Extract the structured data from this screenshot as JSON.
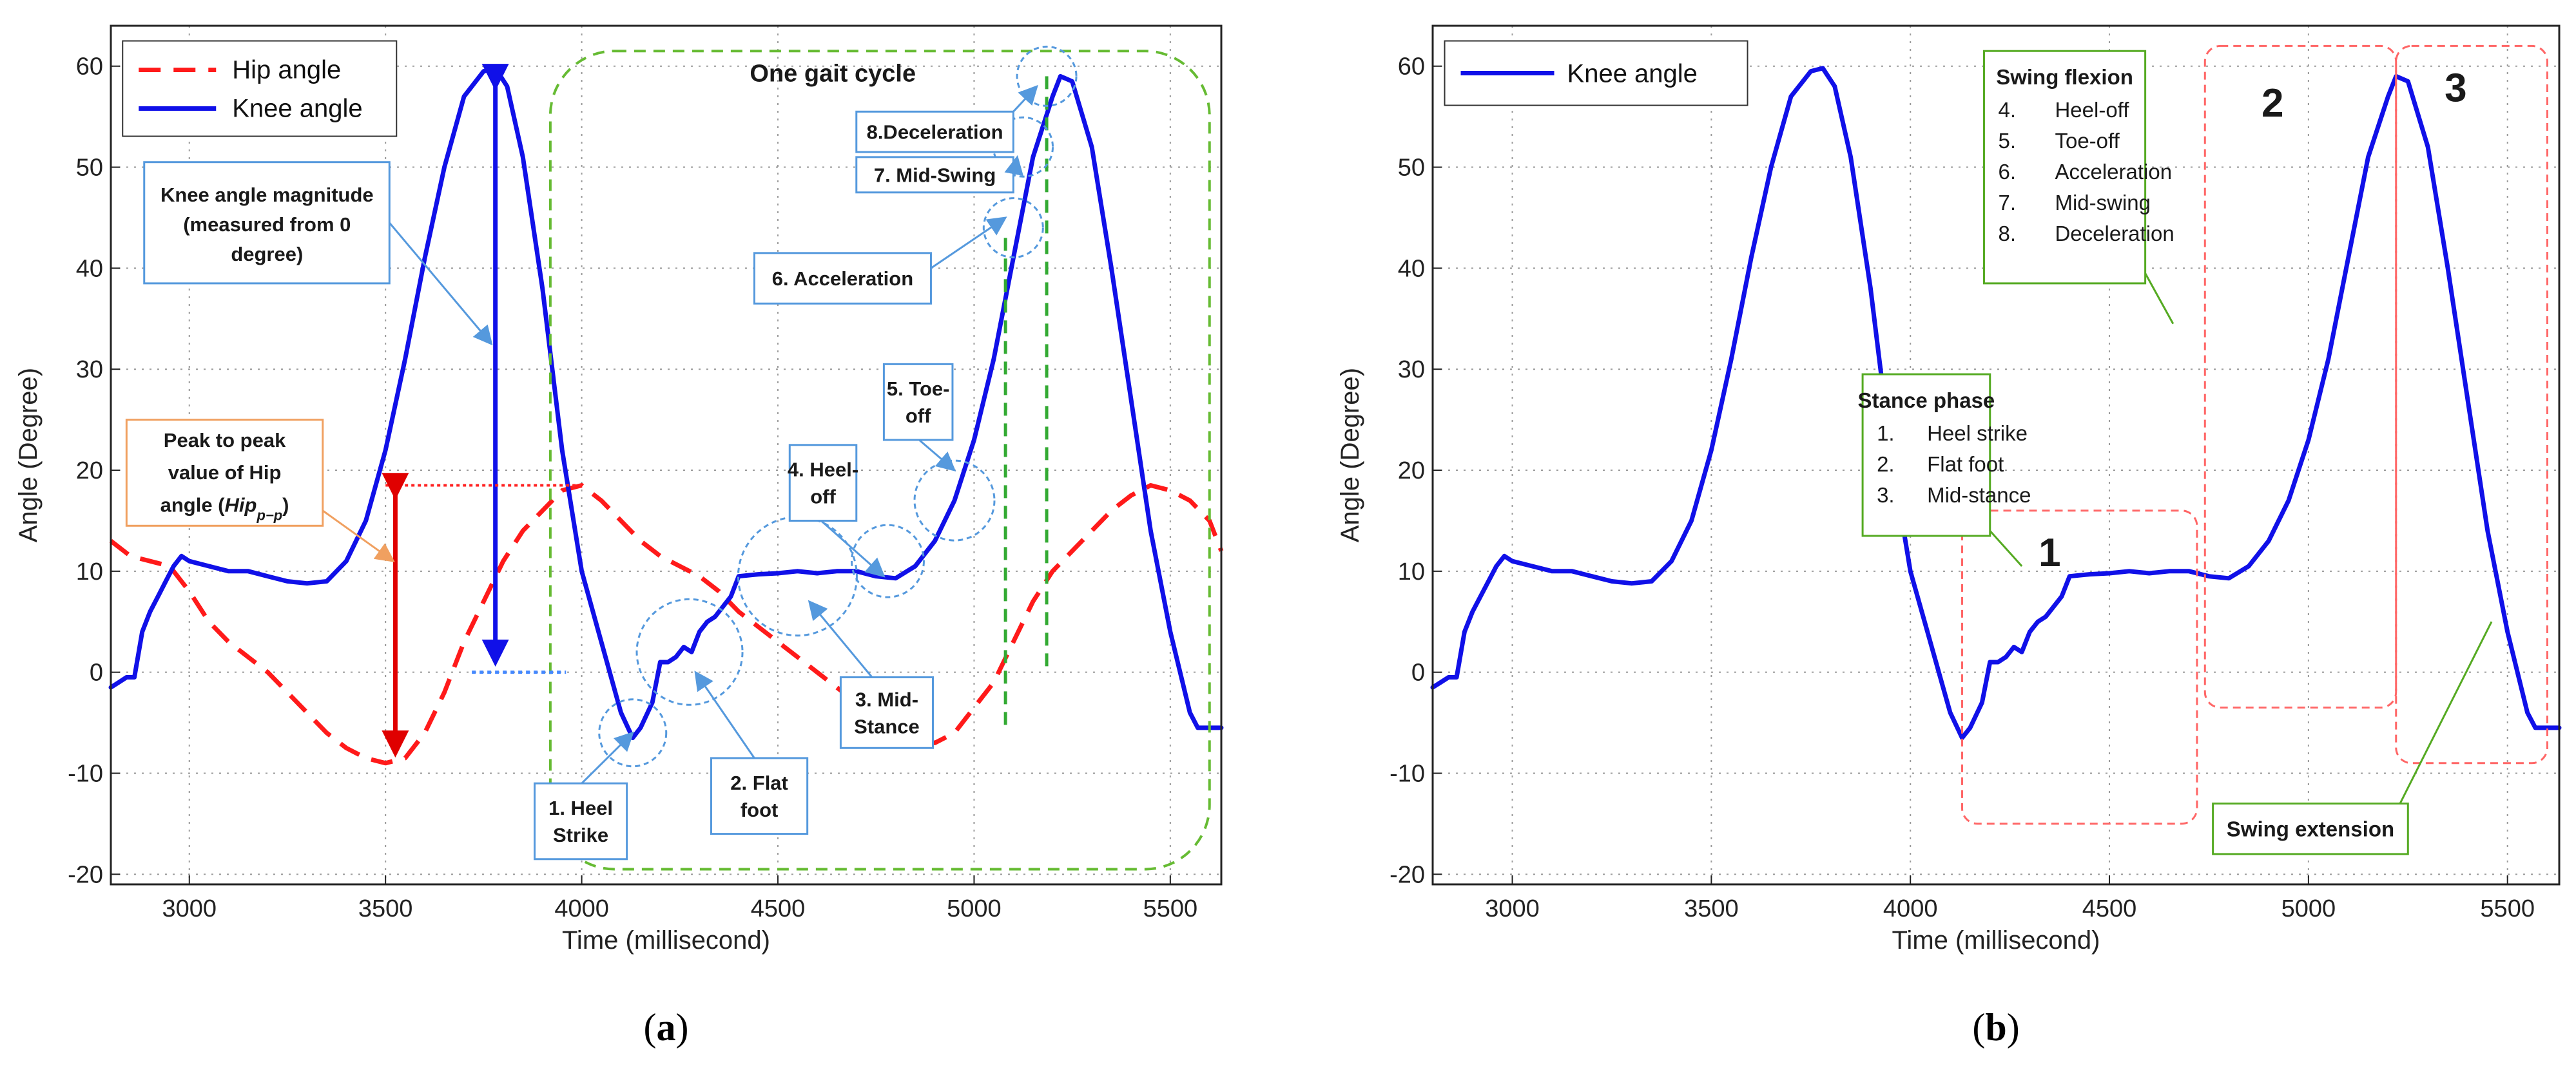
{
  "colors": {
    "hip": "#ff1a1a",
    "knee": "#1010e8",
    "gait_green": "#66bb33",
    "phase_red": "#ff6666",
    "phase_number": "#ee2222",
    "callout_blue": "#5599dd",
    "callout_orange": "#f0a060",
    "ann_green": "#55aa22",
    "grid": "#9a9a9a"
  },
  "chart_data": [
    {
      "id": "a",
      "type": "line",
      "caption": "a",
      "xlabel": "Time (millisecond)",
      "ylabel": "Angle (Degree)",
      "xlim": [
        2800,
        5630
      ],
      "ylim": [
        -21,
        64
      ],
      "xticks": [
        3000,
        3500,
        4000,
        4500,
        5000,
        5500
      ],
      "yticks": [
        -20,
        -10,
        0,
        10,
        20,
        30,
        40,
        50,
        60
      ],
      "grid": true,
      "legend": {
        "position": "top-left",
        "entries": [
          "Hip angle",
          "Knee angle"
        ]
      },
      "series": [
        {
          "name": "Knee angle",
          "color": "knee",
          "style": "solid",
          "x": [
            2800,
            2820,
            2840,
            2860,
            2880,
            2900,
            2920,
            2940,
            2960,
            2980,
            3000,
            3050,
            3100,
            3150,
            3200,
            3250,
            3300,
            3350,
            3400,
            3450,
            3500,
            3550,
            3600,
            3650,
            3700,
            3750,
            3780,
            3810,
            3850,
            3900,
            3950,
            4000,
            4050,
            4100,
            4130,
            4150,
            4180,
            4200,
            4220,
            4240,
            4260,
            4280,
            4300,
            4320,
            4340,
            4380,
            4400,
            4450,
            4500,
            4550,
            4600,
            4650,
            4700,
            4750,
            4800,
            4850,
            4900,
            4950,
            5000,
            5050,
            5100,
            5150,
            5200,
            5220,
            5250,
            5300,
            5350,
            5400,
            5450,
            5500,
            5550,
            5570,
            5590,
            5610,
            5630
          ],
          "y": [
            -1.5,
            -1,
            -0.5,
            -0.5,
            4,
            6,
            7.5,
            9,
            10.5,
            11.5,
            11,
            10.5,
            10,
            10,
            9.5,
            9,
            8.8,
            9,
            11,
            15,
            22,
            31,
            41,
            50,
            57,
            59.5,
            59.8,
            58,
            51,
            38,
            22,
            10,
            3,
            -4,
            -6.5,
            -5.5,
            -3,
            1,
            1,
            1.5,
            2.5,
            2,
            4,
            5,
            5.5,
            7.5,
            9.5,
            9.7,
            9.8,
            10,
            9.8,
            10,
            10,
            9.5,
            9.3,
            10.5,
            13,
            17,
            23,
            31,
            41,
            51,
            57,
            59,
            58.5,
            52,
            40,
            27,
            14,
            4,
            -4,
            -5.5,
            -5.5,
            -5.5,
            -5.5
          ]
        },
        {
          "name": "Hip angle",
          "color": "hip",
          "style": "dashed",
          "x": [
            2800,
            2850,
            2900,
            2950,
            3000,
            3050,
            3100,
            3150,
            3200,
            3250,
            3300,
            3350,
            3400,
            3450,
            3500,
            3550,
            3600,
            3650,
            3700,
            3750,
            3800,
            3850,
            3900,
            3950,
            4000,
            4050,
            4100,
            4150,
            4200,
            4250,
            4300,
            4350,
            4400,
            4450,
            4500,
            4550,
            4600,
            4650,
            4700,
            4750,
            4800,
            4850,
            4900,
            4950,
            5000,
            5050,
            5100,
            5150,
            5200,
            5250,
            5300,
            5350,
            5400,
            5450,
            5500,
            5550,
            5600,
            5630
          ],
          "y": [
            13,
            11.5,
            11,
            10.5,
            8,
            5,
            3,
            1.5,
            0,
            -2,
            -4,
            -6,
            -7.5,
            -8.5,
            -9,
            -8.5,
            -6,
            -2,
            3,
            7,
            11,
            14,
            16,
            18,
            18.5,
            17,
            15,
            13,
            11.5,
            10.5,
            9.5,
            8,
            6,
            4.5,
            3,
            1.5,
            0,
            -1.5,
            -3,
            -4.5,
            -5.5,
            -6.5,
            -7,
            -6,
            -3.5,
            -1,
            3,
            7,
            10,
            12,
            14,
            16,
            17.5,
            18.5,
            18,
            17,
            15,
            12
          ]
        }
      ],
      "annotations": {
        "gait_cycle_label": "One gait cycle",
        "knee_magnitude_lines": [
          "Knee angle magnitude",
          "(measured from 0",
          "degree)"
        ],
        "hip_peak_lines": [
          "Peak to peak",
          "value of Hip",
          "angle ("
        ],
        "hip_peak_math": "Hip",
        "hip_peak_sub": "p−p",
        "hip_peak_close": ")",
        "events": [
          {
            "key": "heel_strike",
            "lines": [
              "1. Heel",
              "Strike"
            ],
            "x": 4130,
            "y": -6
          },
          {
            "key": "flat_foot",
            "lines": [
              "2. Flat",
              "foot"
            ],
            "x": 4275,
            "y": 2
          },
          {
            "key": "mid_stance",
            "lines": [
              "3. Mid-",
              "Stance"
            ],
            "x": 4550,
            "y": 9.5
          },
          {
            "key": "heel_off",
            "lines": [
              "4. Heel-",
              "off"
            ],
            "x": 4780,
            "y": 11
          },
          {
            "key": "toe_off",
            "lines": [
              "5. Toe-",
              "off"
            ],
            "x": 4950,
            "y": 17
          },
          {
            "key": "acceleration",
            "lines": [
              "6. Acceleration"
            ],
            "x": 5100,
            "y": 44
          },
          {
            "key": "mid_swing",
            "lines": [
              "7. Mid-Swing"
            ],
            "x": 5125,
            "y": 52
          },
          {
            "key": "deceleration",
            "lines": [
              "8.Deceleration"
            ],
            "x": 5185,
            "y": 59
          }
        ]
      }
    },
    {
      "id": "b",
      "type": "line",
      "caption": "b",
      "xlabel": "Time (millisecond)",
      "ylabel": "Angle (Degree)",
      "xlim": [
        2800,
        5630
      ],
      "ylim": [
        -21,
        64
      ],
      "xticks": [
        3000,
        3500,
        4000,
        4500,
        5000,
        5500
      ],
      "yticks": [
        -20,
        -10,
        0,
        10,
        20,
        30,
        40,
        50,
        60
      ],
      "grid": true,
      "legend": {
        "position": "top-left",
        "entries": [
          "Knee angle"
        ]
      },
      "series_ref": "Knee angle",
      "annotations": {
        "swing_flexion_title": "Swing flexion",
        "swing_flexion_items": [
          {
            "num": "4.",
            "text": "Heel-off"
          },
          {
            "num": "5.",
            "text": "Toe-off"
          },
          {
            "num": "6.",
            "text": "Acceleration"
          },
          {
            "num": "7.",
            "text": "Mid-swing"
          },
          {
            "num": "8.",
            "text": "Deceleration"
          }
        ],
        "stance_title": "Stance phase",
        "stance_items": [
          {
            "num": "1.",
            "text": "Heel strike"
          },
          {
            "num": "2.",
            "text": "Flat foot"
          },
          {
            "num": "3.",
            "text": "Mid-stance"
          }
        ],
        "swing_extension": "Swing extension",
        "phases": [
          {
            "label": "1",
            "x": [
              4130,
              4720
            ],
            "y": [
              -15,
              16
            ]
          },
          {
            "label": "2",
            "x": [
              4740,
              5220
            ],
            "y": [
              -3.5,
              62
            ]
          },
          {
            "label": "3",
            "x": [
              5220,
              5600
            ],
            "y": [
              -9,
              62
            ]
          }
        ]
      }
    }
  ]
}
